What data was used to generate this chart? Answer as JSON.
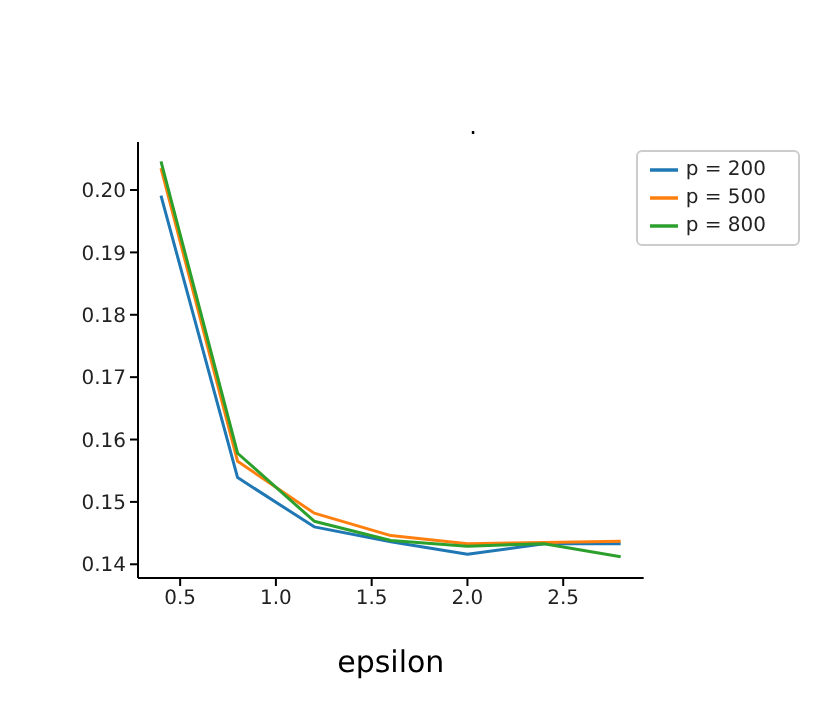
{
  "chart_data": {
    "type": "line",
    "title": ".",
    "xlabel": "epsilon",
    "x": [
      0.4,
      0.8,
      1.2,
      1.6,
      2.0,
      2.4,
      2.8
    ],
    "series": [
      {
        "name": "p = 200",
        "color": "#1f77b4",
        "values": [
          0.1991,
          0.1539,
          0.146,
          0.1436,
          0.1416,
          0.1433,
          0.1433
        ]
      },
      {
        "name": "p = 500",
        "color": "#ff7f0e",
        "values": [
          0.2035,
          0.1565,
          0.1482,
          0.1446,
          0.1433,
          0.1435,
          0.1437
        ]
      },
      {
        "name": "p = 800",
        "color": "#2ca02c",
        "values": [
          0.2046,
          0.1578,
          0.1469,
          0.1438,
          0.1429,
          0.1433,
          0.1412
        ]
      }
    ],
    "xlim": [
      0.28,
      2.92
    ],
    "xticks": [
      {
        "value": 0.5,
        "label": "0.5"
      },
      {
        "value": 1.0,
        "label": "1.0"
      },
      {
        "value": 1.5,
        "label": "1.5"
      },
      {
        "value": 2.0,
        "label": "2.0"
      },
      {
        "value": 2.5,
        "label": "2.5"
      }
    ],
    "ylim": [
      0.1378,
      0.2077
    ],
    "yticks": [
      {
        "value": 0.14,
        "label": "0.14"
      },
      {
        "value": 0.15,
        "label": "0.15"
      },
      {
        "value": 0.16,
        "label": "0.16"
      },
      {
        "value": 0.17,
        "label": "0.17"
      },
      {
        "value": 0.18,
        "label": "0.18"
      },
      {
        "value": 0.19,
        "label": "0.19"
      },
      {
        "value": 0.2,
        "label": "0.20"
      }
    ],
    "legend": "top right",
    "grid": false,
    "marker": "none",
    "line_style": "solid"
  }
}
